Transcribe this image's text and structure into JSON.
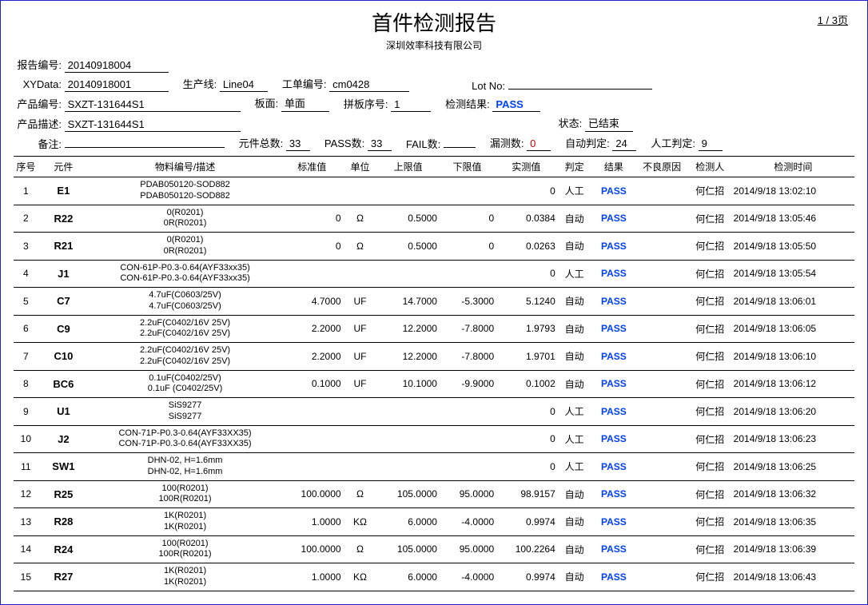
{
  "page_indicator": "1 / 3页",
  "title": "首件检测报告",
  "subtitle": "深圳效率科技有限公司",
  "labels": {
    "report_no": "报告编号:",
    "xydata": "XYData:",
    "prod_line": "生产线:",
    "wo": "工单编号:",
    "lot": "Lot No:",
    "prod_no": "产品编号:",
    "board": "板面:",
    "panel": "拼板序号:",
    "result": "检测结果:",
    "prod_desc": "产品描述:",
    "status": "状态:",
    "remark": "备注:",
    "total": "元件总数:",
    "passcnt": "PASS数:",
    "failcnt": "FAIL数:",
    "leak": "漏测数:",
    "auto": "自动判定:",
    "manual": "人工判定:"
  },
  "header": {
    "report_no": "20140918004",
    "xydata": "20140918001",
    "prod_line": "Line04",
    "wo": "cm0428",
    "lot": "",
    "prod_no": "SXZT-131644S1",
    "board": "单面",
    "panel": "1",
    "result": "PASS",
    "prod_desc": "SXZT-131644S1",
    "status": "已结束",
    "remark": "",
    "total": "33",
    "passcnt": "33",
    "failcnt": "",
    "leak": "0",
    "auto": "24",
    "manual": "9"
  },
  "columns": {
    "idx": "序号",
    "comp": "元件",
    "mat": "物料编号/描述",
    "std": "标准值",
    "unit": "单位",
    "upper": "上限值",
    "lower": "下限值",
    "meas": "实测值",
    "judge": "判定",
    "result": "结果",
    "reason": "不良原因",
    "inspector": "检测人",
    "time": "检测时间"
  },
  "rows": [
    {
      "idx": "1",
      "comp": "E1",
      "mat1": "PDAB050120-SOD882",
      "mat2": "PDAB050120-SOD882",
      "std": "",
      "unit": "",
      "upper": "",
      "lower": "",
      "meas": "0",
      "judge": "人工",
      "result": "PASS",
      "reason": "",
      "inspector": "何仁招",
      "time": "2014/9/18 13:02:10"
    },
    {
      "idx": "2",
      "comp": "R22",
      "mat1": "0(R0201)",
      "mat2": "0R(R0201)",
      "std": "0",
      "unit": "Ω",
      "upper": "0.5000",
      "lower": "0",
      "meas": "0.0384",
      "judge": "自动",
      "result": "PASS",
      "reason": "",
      "inspector": "何仁招",
      "time": "2014/9/18 13:05:46"
    },
    {
      "idx": "3",
      "comp": "R21",
      "mat1": "0(R0201)",
      "mat2": "0R(R0201)",
      "std": "0",
      "unit": "Ω",
      "upper": "0.5000",
      "lower": "0",
      "meas": "0.0263",
      "judge": "自动",
      "result": "PASS",
      "reason": "",
      "inspector": "何仁招",
      "time": "2014/9/18 13:05:50"
    },
    {
      "idx": "4",
      "comp": "J1",
      "mat1": "CON-61P-P0.3-0.64(AYF33xx35)",
      "mat2": "CON-61P-P0.3-0.64(AYF33xx35)",
      "std": "",
      "unit": "",
      "upper": "",
      "lower": "",
      "meas": "0",
      "judge": "人工",
      "result": "PASS",
      "reason": "",
      "inspector": "何仁招",
      "time": "2014/9/18 13:05:54"
    },
    {
      "idx": "5",
      "comp": "C7",
      "mat1": "4.7uF(C0603/25V)",
      "mat2": "4.7uF(C0603/25V)",
      "std": "4.7000",
      "unit": "UF",
      "upper": "14.7000",
      "lower": "-5.3000",
      "meas": "5.1240",
      "judge": "自动",
      "result": "PASS",
      "reason": "",
      "inspector": "何仁招",
      "time": "2014/9/18 13:06:01"
    },
    {
      "idx": "6",
      "comp": "C9",
      "mat1": "2.2uF(C0402/16V  25V)",
      "mat2": "2.2uF(C0402/16V  25V)",
      "std": "2.2000",
      "unit": "UF",
      "upper": "12.2000",
      "lower": "-7.8000",
      "meas": "1.9793",
      "judge": "自动",
      "result": "PASS",
      "reason": "",
      "inspector": "何仁招",
      "time": "2014/9/18 13:06:05"
    },
    {
      "idx": "7",
      "comp": "C10",
      "mat1": "2.2uF(C0402/16V  25V)",
      "mat2": "2.2uF(C0402/16V  25V)",
      "std": "2.2000",
      "unit": "UF",
      "upper": "12.2000",
      "lower": "-7.8000",
      "meas": "1.9701",
      "judge": "自动",
      "result": "PASS",
      "reason": "",
      "inspector": "何仁招",
      "time": "2014/9/18 13:06:10"
    },
    {
      "idx": "8",
      "comp": "BC6",
      "mat1": "0.1uF(C0402/25V)",
      "mat2": "0.1uF (C0402/25V)",
      "std": "0.1000",
      "unit": "UF",
      "upper": "10.1000",
      "lower": "-9.9000",
      "meas": "0.1002",
      "judge": "自动",
      "result": "PASS",
      "reason": "",
      "inspector": "何仁招",
      "time": "2014/9/18 13:06:12"
    },
    {
      "idx": "9",
      "comp": "U1",
      "mat1": "SiS9277",
      "mat2": "SiS9277",
      "std": "",
      "unit": "",
      "upper": "",
      "lower": "",
      "meas": "0",
      "judge": "人工",
      "result": "PASS",
      "reason": "",
      "inspector": "何仁招",
      "time": "2014/9/18 13:06:20"
    },
    {
      "idx": "10",
      "comp": "J2",
      "mat1": "CON-71P-P0.3-0.64(AYF33XX35)",
      "mat2": "CON-71P-P0.3-0.64(AYF33XX35)",
      "std": "",
      "unit": "",
      "upper": "",
      "lower": "",
      "meas": "0",
      "judge": "人工",
      "result": "PASS",
      "reason": "",
      "inspector": "何仁招",
      "time": "2014/9/18 13:06:23"
    },
    {
      "idx": "11",
      "comp": "SW1",
      "mat1": "DHN-02, H=1.6mm",
      "mat2": "DHN-02, H=1.6mm",
      "std": "",
      "unit": "",
      "upper": "",
      "lower": "",
      "meas": "0",
      "judge": "人工",
      "result": "PASS",
      "reason": "",
      "inspector": "何仁招",
      "time": "2014/9/18 13:06:25"
    },
    {
      "idx": "12",
      "comp": "R25",
      "mat1": "100(R0201)",
      "mat2": "100R(R0201)",
      "std": "100.0000",
      "unit": "Ω",
      "upper": "105.0000",
      "lower": "95.0000",
      "meas": "98.9157",
      "judge": "自动",
      "result": "PASS",
      "reason": "",
      "inspector": "何仁招",
      "time": "2014/9/18 13:06:32"
    },
    {
      "idx": "13",
      "comp": "R28",
      "mat1": "1K(R0201)",
      "mat2": "1K(R0201)",
      "std": "1.0000",
      "unit": "KΩ",
      "upper": "6.0000",
      "lower": "-4.0000",
      "meas": "0.9974",
      "judge": "自动",
      "result": "PASS",
      "reason": "",
      "inspector": "何仁招",
      "time": "2014/9/18 13:06:35"
    },
    {
      "idx": "14",
      "comp": "R24",
      "mat1": "100(R0201)",
      "mat2": "100R(R0201)",
      "std": "100.0000",
      "unit": "Ω",
      "upper": "105.0000",
      "lower": "95.0000",
      "meas": "100.2264",
      "judge": "自动",
      "result": "PASS",
      "reason": "",
      "inspector": "何仁招",
      "time": "2014/9/18 13:06:39"
    },
    {
      "idx": "15",
      "comp": "R27",
      "mat1": "1K(R0201)",
      "mat2": "1K(R0201)",
      "std": "1.0000",
      "unit": "KΩ",
      "upper": "6.0000",
      "lower": "-4.0000",
      "meas": "0.9974",
      "judge": "自动",
      "result": "PASS",
      "reason": "",
      "inspector": "何仁招",
      "time": "2014/9/18 13:06:43"
    }
  ],
  "col_widths": {
    "idx": 28,
    "comp": 58,
    "mat": 220,
    "std": 70,
    "unit": 40,
    "upper": 70,
    "lower": 65,
    "meas": 70,
    "judge": 40,
    "result": 50,
    "reason": 60,
    "inspector": 50,
    "time": 140
  },
  "colors": {
    "border": "#2020cc",
    "pass": "#0040ff",
    "red": "#c00000"
  }
}
